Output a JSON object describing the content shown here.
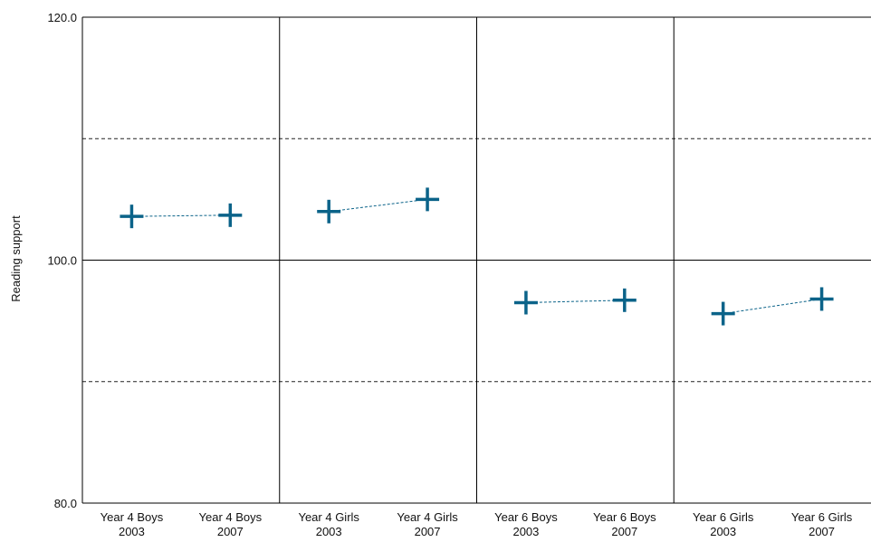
{
  "chart_data": {
    "type": "scatter",
    "ylabel": "Reading support",
    "xlabel": "",
    "title": "",
    "ylim": [
      80.0,
      120.0
    ],
    "yticks": [
      "80.0",
      "100.0",
      "120.0"
    ],
    "ytick_values": [
      80,
      100,
      120
    ],
    "dashed_gridlines": [
      90,
      110
    ],
    "categories": [
      [
        "Year 4 Boys",
        "2003"
      ],
      [
        "Year 4 Boys",
        "2007"
      ],
      [
        "Year 4 Girls",
        "2003"
      ],
      [
        "Year 4 Girls",
        "2007"
      ],
      [
        "Year 6 Boys",
        "2003"
      ],
      [
        "Year 6 Boys",
        "2007"
      ],
      [
        "Year 6 Girls",
        "2003"
      ],
      [
        "Year 6 Girls",
        "2007"
      ]
    ],
    "values": [
      103.6,
      103.7,
      104.0,
      105.0,
      96.5,
      96.7,
      95.6,
      96.8
    ],
    "pairs": [
      [
        0,
        1
      ],
      [
        2,
        3
      ],
      [
        4,
        5
      ],
      [
        6,
        7
      ]
    ],
    "marker": "plus",
    "color": "#0b6389",
    "grid": true,
    "legend": "none"
  }
}
